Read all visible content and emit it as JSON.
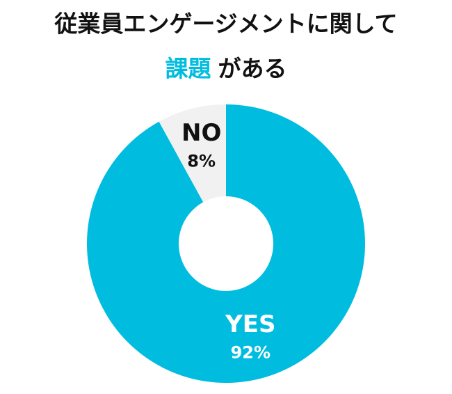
{
  "chart_data": {
    "type": "donut",
    "title": "従業員エンゲージメントに関して",
    "title_highlight": "課題",
    "title_highlight_color": "#00bde0",
    "title_rest": "がある",
    "categories": [
      "YES",
      "NO"
    ],
    "values": [
      92,
      8
    ],
    "value_labels": [
      "92%",
      "8%"
    ],
    "colors": [
      "#00bde0",
      "#f1f1f1"
    ],
    "label_colors": [
      "#ffffff",
      "#111111"
    ]
  }
}
